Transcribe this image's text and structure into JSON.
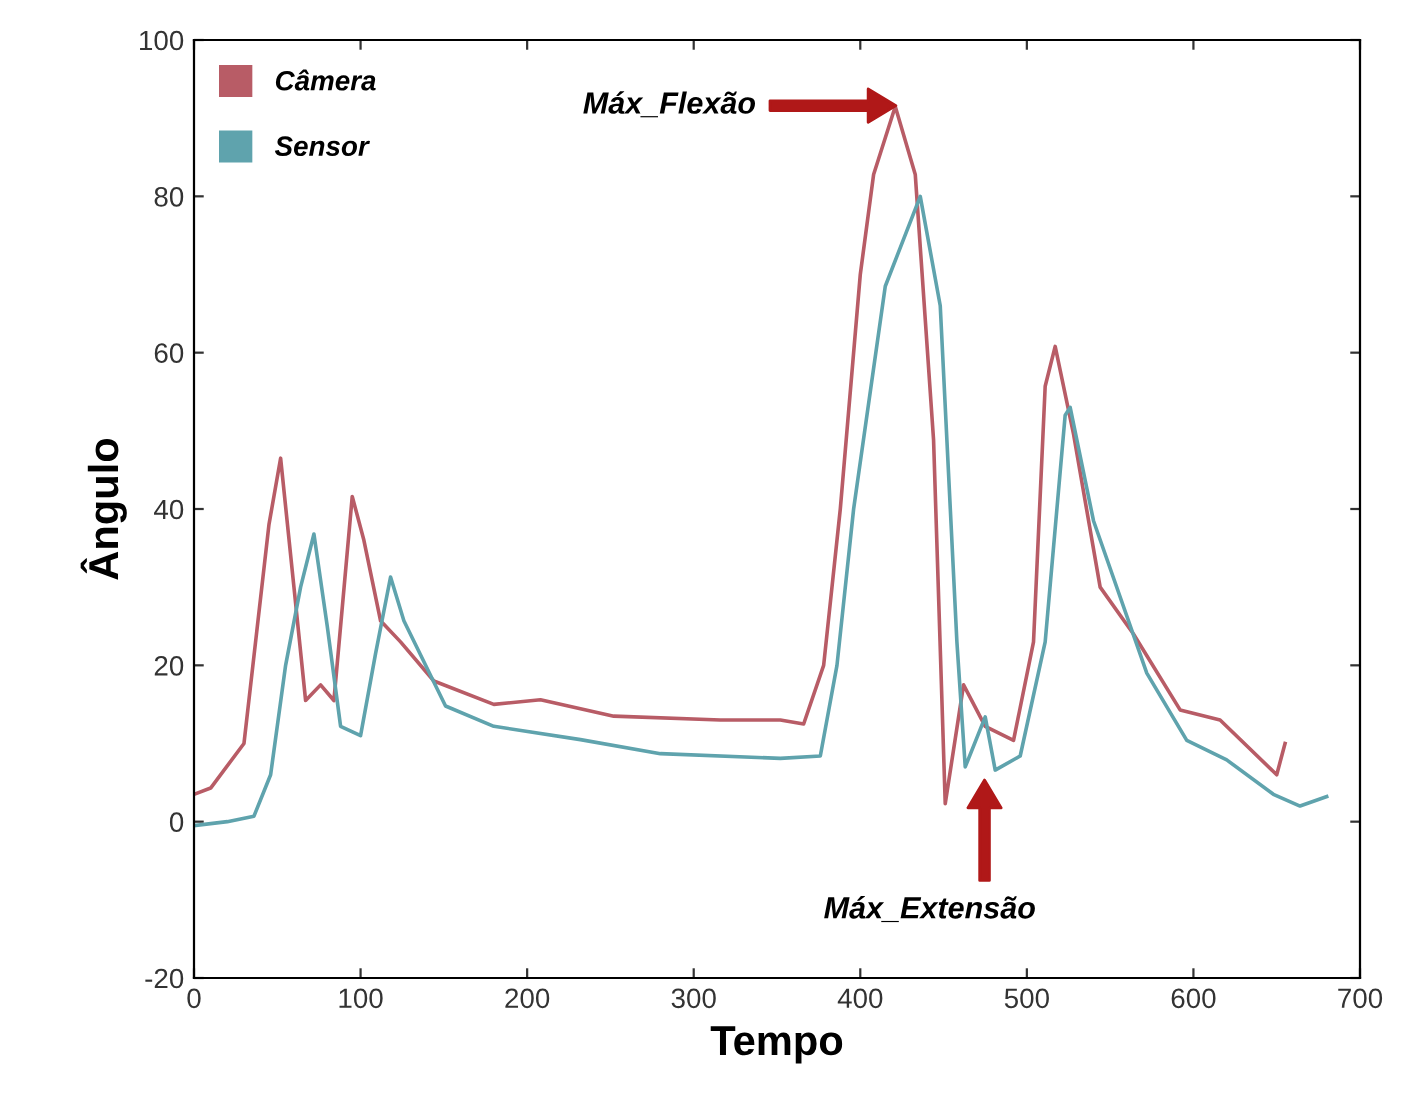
{
  "chart_data": {
    "type": "line",
    "xlabel": "Tempo",
    "ylabel": "Ângulo",
    "xlim": [
      0,
      700
    ],
    "xticks": [
      0,
      100,
      200,
      300,
      400,
      500,
      600,
      700
    ],
    "ylim": [
      -20,
      100
    ],
    "yticks": [
      -20,
      0,
      20,
      40,
      60,
      80,
      100
    ],
    "grid": false,
    "legend": "top left",
    "marker": "none",
    "line_style": "solid",
    "series": [
      {
        "name": "Câmera",
        "color": "#b85c66",
        "x": [
          0,
          10,
          30,
          45,
          52,
          60,
          67,
          76,
          84,
          95,
          102,
          112,
          124,
          144,
          180,
          208,
          252,
          316,
          352,
          366,
          378,
          388,
          400,
          408,
          421,
          433,
          444,
          451,
          462,
          475,
          492,
          504,
          511,
          517,
          528,
          544,
          564,
          592,
          616,
          650,
          655
        ],
        "values": [
          3.5,
          4.3,
          10,
          38,
          46.5,
          30,
          15.5,
          17.5,
          15.5,
          41.6,
          36,
          25.7,
          23,
          18,
          15,
          15.6,
          13.5,
          13,
          13,
          12.5,
          20,
          40,
          70,
          82.8,
          91.5,
          82.8,
          48.8,
          2.3,
          17.5,
          12.2,
          10.4,
          23,
          55.7,
          60.8,
          49.6,
          30,
          24,
          14.3,
          13,
          6,
          10
        ]
      },
      {
        "name": "Sensor",
        "color": "#5fa3ad",
        "x": [
          0,
          20,
          36,
          46,
          55,
          64,
          72,
          80,
          88,
          100,
          109,
          118,
          126,
          151,
          180,
          232,
          280,
          352,
          376,
          386,
          396,
          415,
          436,
          448,
          458,
          463,
          475,
          481,
          496,
          511,
          523,
          526,
          540,
          572,
          596,
          620,
          648,
          664,
          680
        ],
        "values": [
          -0.5,
          0,
          0.7,
          6,
          20,
          30,
          36.8,
          25,
          12.2,
          11,
          21.5,
          31.3,
          25.7,
          14.8,
          12.2,
          10.5,
          8.7,
          8.1,
          8.4,
          20,
          40,
          68.5,
          80,
          66,
          23,
          7,
          13.4,
          6.6,
          8.4,
          23,
          52,
          53,
          38.5,
          19,
          10.4,
          7.9,
          3.5,
          2,
          3.2
        ]
      }
    ],
    "annotations": [
      "Máx_Flexão",
      "Máx_Extensão"
    ]
  }
}
